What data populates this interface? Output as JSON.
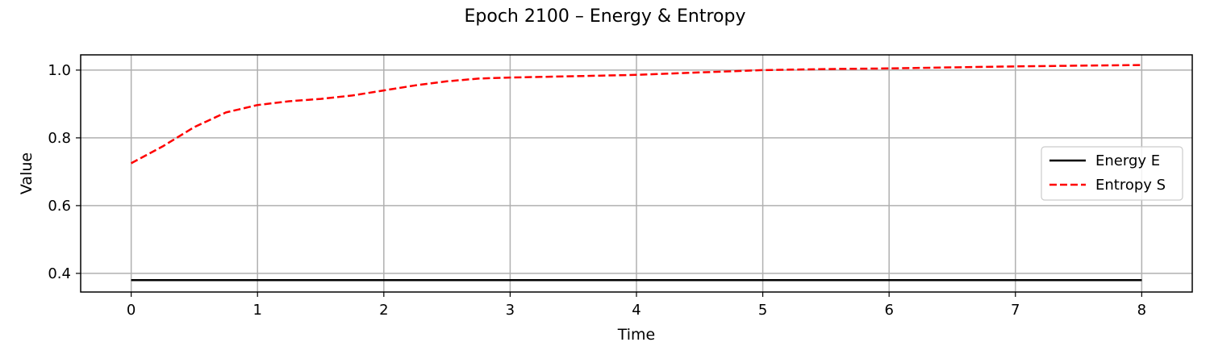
{
  "chart_data": {
    "type": "line",
    "title": "Epoch 2100 – Energy & Entropy",
    "xlabel": "Time",
    "ylabel": "Value",
    "xlim": [
      -0.4,
      8.4
    ],
    "ylim": [
      0.345,
      1.045
    ],
    "xticks": [
      0,
      1,
      2,
      3,
      4,
      5,
      6,
      7,
      8
    ],
    "yticks": [
      0.4,
      0.6,
      0.8,
      1.0
    ],
    "ytick_labels": [
      "0.4",
      "0.6",
      "0.8",
      "1.0"
    ],
    "grid": true,
    "legend_position": "center-right",
    "series": [
      {
        "name": "Energy E",
        "color": "#000000",
        "linestyle": "solid",
        "x": [
          0,
          1,
          2,
          3,
          4,
          5,
          6,
          7,
          8
        ],
        "y": [
          0.38,
          0.38,
          0.38,
          0.38,
          0.38,
          0.38,
          0.38,
          0.38,
          0.38
        ]
      },
      {
        "name": "Entropy S",
        "color": "#ff0000",
        "linestyle": "dashed",
        "x": [
          0,
          0.25,
          0.5,
          0.75,
          1.0,
          1.25,
          1.5,
          1.75,
          2.0,
          2.25,
          2.5,
          2.75,
          3.0,
          3.5,
          4.0,
          4.5,
          5.0,
          5.5,
          6.0,
          6.5,
          7.0,
          7.5,
          8.0
        ],
        "y": [
          0.725,
          0.775,
          0.832,
          0.875,
          0.897,
          0.908,
          0.915,
          0.925,
          0.94,
          0.955,
          0.967,
          0.975,
          0.978,
          0.982,
          0.986,
          0.993,
          1.0,
          1.003,
          1.005,
          1.008,
          1.011,
          1.013,
          1.015
        ]
      }
    ]
  }
}
